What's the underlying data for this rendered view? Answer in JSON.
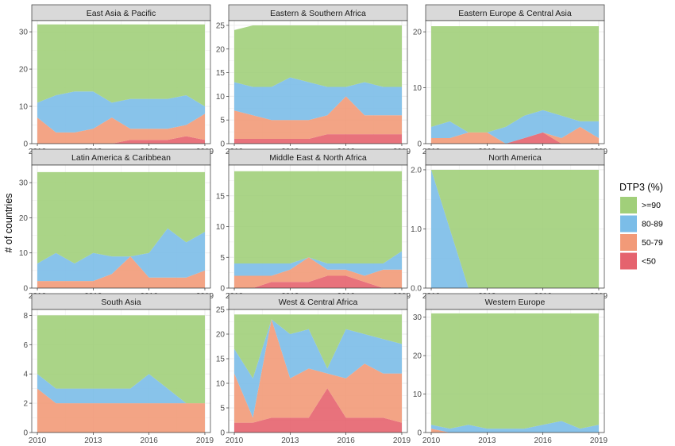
{
  "chart_data": {
    "type": "area",
    "ylabel": "# of countries",
    "xlabel": "",
    "x": [
      2010,
      2011,
      2012,
      2013,
      2014,
      2015,
      2016,
      2017,
      2018,
      2019
    ],
    "x_ticks": [
      "2010",
      "2013",
      "2016",
      "2019"
    ],
    "legend": {
      "title": "DTP3 (%)",
      "position": "right",
      "entries": [
        {
          "label": ">=90",
          "color": "#a1cf7a"
        },
        {
          "label": "80-89",
          "color": "#7bbde8"
        },
        {
          "label": "50-79",
          "color": "#f29a78"
        },
        {
          "label": "<50",
          "color": "#e5636e"
        }
      ]
    },
    "grid": true,
    "panels": [
      {
        "title": "East Asia & Pacific",
        "ylim": [
          0,
          33
        ],
        "yticks": [
          "0",
          "10",
          "20",
          "30"
        ],
        "series": {
          "lt50": [
            0,
            0,
            0,
            0,
            0,
            1,
            1,
            1,
            2,
            1
          ],
          "c50_79": [
            7,
            3,
            3,
            4,
            7,
            3,
            3,
            3,
            3,
            7
          ],
          "c80_89": [
            4,
            10,
            11,
            10,
            4,
            8,
            8,
            8,
            8,
            2
          ],
          "ge90": [
            21,
            19,
            18,
            18,
            21,
            20,
            20,
            20,
            19,
            22
          ]
        }
      },
      {
        "title": "Eastern & Southern Africa",
        "ylim": [
          0,
          26
        ],
        "yticks": [
          "0",
          "5",
          "10",
          "15",
          "20",
          "25"
        ],
        "series": {
          "lt50": [
            1,
            1,
            1,
            1,
            1,
            2,
            2,
            2,
            2,
            2
          ],
          "c50_79": [
            6,
            5,
            4,
            4,
            4,
            4,
            8,
            4,
            4,
            4
          ],
          "c80_89": [
            6,
            6,
            7,
            9,
            8,
            6,
            2,
            7,
            6,
            6
          ],
          "ge90": [
            11,
            13,
            13,
            11,
            12,
            13,
            13,
            12,
            13,
            13
          ]
        }
      },
      {
        "title": "Eastern Europe & Central Asia",
        "ylim": [
          0,
          22
        ],
        "yticks": [
          "0",
          "10",
          "20"
        ],
        "series": {
          "lt50": [
            0,
            0,
            0,
            0,
            0,
            1,
            2,
            0,
            0,
            0
          ],
          "c50_79": [
            1,
            1,
            2,
            2,
            0,
            0,
            0,
            1,
            3,
            1
          ],
          "c80_89": [
            2,
            3,
            0,
            0,
            3,
            4,
            4,
            4,
            1,
            3
          ],
          "ge90": [
            18,
            17,
            19,
            19,
            18,
            16,
            15,
            16,
            17,
            17
          ]
        }
      },
      {
        "title": "Latin America & Caribbean",
        "ylim": [
          0,
          35
        ],
        "yticks": [
          "0",
          "10",
          "20",
          "30"
        ],
        "series": {
          "lt50": [
            0,
            0,
            0,
            0,
            0,
            0,
            0,
            0,
            0,
            0
          ],
          "c50_79": [
            2,
            2,
            2,
            2,
            4,
            9,
            3,
            3,
            3,
            5
          ],
          "c80_89": [
            5,
            8,
            5,
            8,
            5,
            0,
            7,
            14,
            10,
            11
          ],
          "ge90": [
            26,
            23,
            26,
            23,
            24,
            24,
            23,
            16,
            20,
            17
          ]
        }
      },
      {
        "title": "Middle East & North Africa",
        "ylim": [
          0,
          20
        ],
        "yticks": [
          "0",
          "5",
          "10",
          "15"
        ],
        "series": {
          "lt50": [
            0,
            0,
            1,
            1,
            1,
            2,
            2,
            1,
            0,
            0
          ],
          "c50_79": [
            2,
            2,
            1,
            2,
            4,
            1,
            1,
            1,
            3,
            3
          ],
          "c80_89": [
            2,
            2,
            2,
            1,
            0,
            1,
            1,
            2,
            1,
            3
          ],
          "ge90": [
            15,
            15,
            15,
            15,
            14,
            15,
            15,
            15,
            15,
            13
          ]
        }
      },
      {
        "title": "North America",
        "ylim": [
          0,
          2.08
        ],
        "yticks": [
          "0.0",
          "1.0",
          "2.0"
        ],
        "series": {
          "lt50": [
            0,
            0,
            0,
            0,
            0,
            0,
            0,
            0,
            0,
            0
          ],
          "c50_79": [
            0,
            0,
            0,
            0,
            0,
            0,
            0,
            0,
            0,
            0
          ],
          "c80_89": [
            2,
            1,
            0,
            0,
            0,
            0,
            0,
            0,
            0,
            0
          ],
          "ge90": [
            0,
            1,
            2,
            2,
            2,
            2,
            2,
            2,
            2,
            2
          ]
        }
      },
      {
        "title": "South Asia",
        "ylim": [
          0,
          8.4
        ],
        "yticks": [
          "0",
          "2",
          "4",
          "6",
          "8"
        ],
        "series": {
          "lt50": [
            0,
            0,
            0,
            0,
            0,
            0,
            0,
            0,
            0,
            0
          ],
          "c50_79": [
            3,
            2,
            2,
            2,
            2,
            2,
            2,
            2,
            2,
            2
          ],
          "c80_89": [
            1,
            1,
            1,
            1,
            1,
            1,
            2,
            1,
            0,
            0
          ],
          "ge90": [
            4,
            5,
            5,
            5,
            5,
            5,
            4,
            5,
            6,
            6
          ]
        }
      },
      {
        "title": "West & Central Africa",
        "ylim": [
          0,
          25
        ],
        "yticks": [
          "0",
          "5",
          "10",
          "15",
          "20",
          "25"
        ],
        "series": {
          "lt50": [
            2,
            2,
            3,
            3,
            3,
            9,
            3,
            3,
            3,
            2
          ],
          "c50_79": [
            10,
            1,
            20,
            8,
            10,
            3,
            8,
            11,
            9,
            10
          ],
          "c80_89": [
            5,
            8,
            0,
            9,
            8,
            1,
            10,
            6,
            7,
            6
          ],
          "ge90": [
            7,
            13,
            1,
            4,
            3,
            11,
            3,
            4,
            5,
            6
          ]
        }
      },
      {
        "title": "Western Europe",
        "ylim": [
          0,
          32
        ],
        "yticks": [
          "0",
          "10",
          "20",
          "30"
        ],
        "series": {
          "lt50": [
            0,
            0,
            0,
            0,
            0,
            0,
            0,
            0,
            0,
            0
          ],
          "c50_79": [
            1,
            0,
            0,
            0,
            0,
            0,
            0,
            0,
            0,
            0
          ],
          "c80_89": [
            1,
            1,
            2,
            1,
            1,
            1,
            2,
            3,
            1,
            2
          ],
          "ge90": [
            29,
            30,
            29,
            30,
            30,
            30,
            29,
            28,
            30,
            29
          ]
        }
      }
    ]
  }
}
